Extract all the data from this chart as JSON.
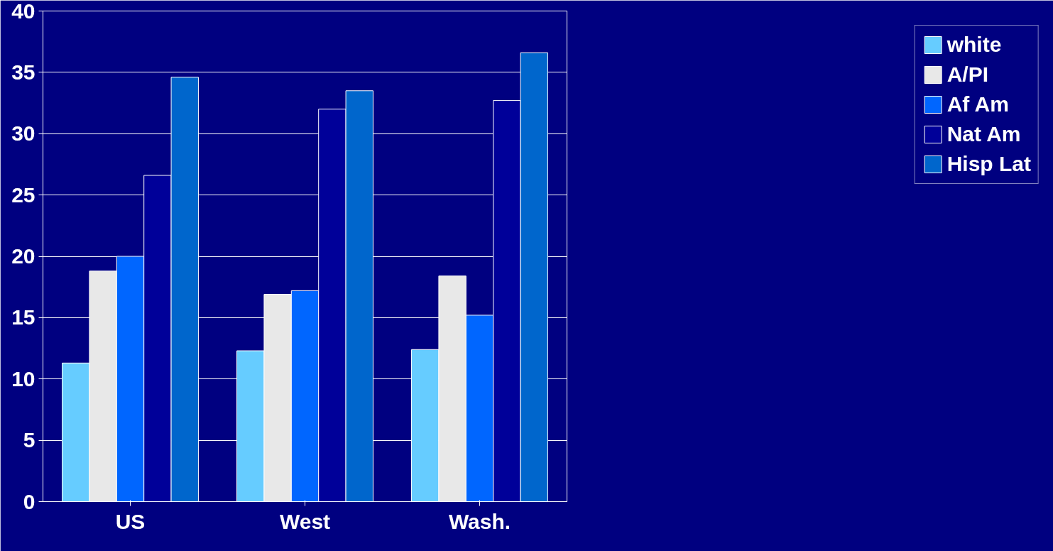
{
  "chart_data": {
    "type": "bar",
    "categories": [
      "US",
      "West",
      "Wash."
    ],
    "series": [
      {
        "name": "white",
        "color": "#66ccff",
        "values": [
          11.3,
          12.3,
          12.4
        ]
      },
      {
        "name": "A/PI",
        "color": "#e8e8e8",
        "values": [
          18.8,
          16.9,
          18.4
        ]
      },
      {
        "name": "Af Am",
        "color": "#0066ff",
        "values": [
          20.0,
          17.2,
          15.2
        ]
      },
      {
        "name": "Nat Am",
        "color": "#000099",
        "values": [
          26.6,
          32.0,
          32.7
        ]
      },
      {
        "name": "Hisp Lat",
        "color": "#0066cc",
        "values": [
          34.6,
          33.5,
          36.6
        ]
      }
    ],
    "ylim": [
      0,
      40
    ],
    "yticks": [
      0,
      5,
      10,
      15,
      20,
      25,
      30,
      35,
      40
    ],
    "grid": "y",
    "legend": "right"
  }
}
